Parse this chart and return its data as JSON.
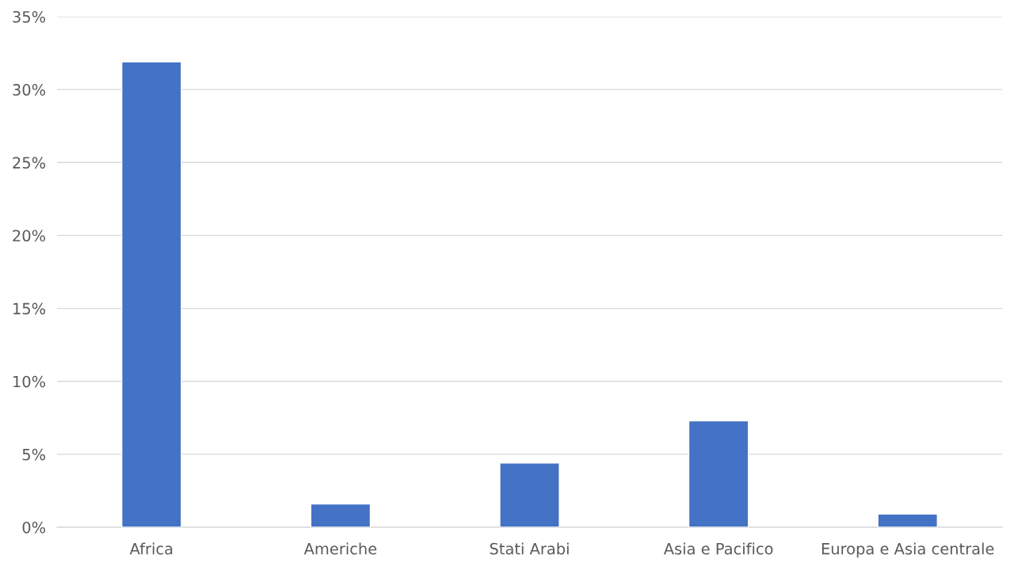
{
  "chart_data": {
    "type": "bar",
    "categories": [
      "Africa",
      "Americhe",
      "Stati Arabi",
      "Asia e Pacifico",
      "Europa e Asia centrale"
    ],
    "values": [
      31.9,
      1.6,
      4.4,
      7.3,
      0.9
    ],
    "color": "#4472c4",
    "ylim": [
      0,
      35
    ],
    "yticks": [
      {
        "value": 0,
        "label": "0%"
      },
      {
        "value": 5,
        "label": "5%"
      },
      {
        "value": 10,
        "label": "10%"
      },
      {
        "value": 15,
        "label": "15%"
      },
      {
        "value": 20,
        "label": "20%"
      },
      {
        "value": 25,
        "label": "25%"
      },
      {
        "value": 30,
        "label": "30%"
      },
      {
        "value": 35,
        "label": "35%"
      }
    ],
    "grid": "y",
    "legend": false
  }
}
